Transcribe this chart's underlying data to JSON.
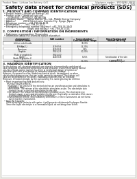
{
  "bg_color": "#e8e8e0",
  "page_bg": "#ffffff",
  "title": "Safety data sheet for chemical products (SDS)",
  "header_left": "Product Name: Lithium Ion Battery Cell",
  "header_right_line1": "Substance number: SPX1085AU-00010",
  "header_right_line2": "Establishment / Revision: Dec.1.2019",
  "section1_title": "1. PRODUCT AND COMPANY IDENTIFICATION",
  "section1_lines": [
    "  • Product name: Lithium Ion Battery Cell",
    "  • Product code: Cylindrical-type cell",
    "       US18650U, US18650U, US18650A",
    "  • Company name:     Sanyo Electric Co., Ltd., Mobile Energy Company",
    "  • Address:           2001 Kamiotsuka, Sumoto-City, Hyogo, Japan",
    "  • Telephone number:  +81-799-26-4111",
    "  • Fax number:        +81-799-26-4121",
    "  • Emergency telephone number (daytime): +81-799-26-3942",
    "                                    (Night and holiday): +81-799-26-3101"
  ],
  "section2_title": "2. COMPOSITION / INFORMATION ON INGREDIENTS",
  "section2_intro": "  • Substance or preparation: Preparation",
  "section2_sub": "  • Information about the chemical nature of product:",
  "table_headers_row1": [
    "Component /",
    "CAS number",
    "Concentration /",
    "Classification and"
  ],
  "table_headers_row2": [
    "Several name",
    "",
    "Concentration range",
    "hazard labeling"
  ],
  "table_rows": [
    [
      "Lithium cobalt oxide\n(LiMnCo₂O₄)",
      "-",
      "30-60%",
      "-"
    ],
    [
      "Iron",
      "7439-89-6",
      "15-25%",
      "-"
    ],
    [
      "Aluminum",
      "7429-90-5",
      "2-5%",
      "-"
    ],
    [
      "Graphite\n(Flake or graphite-L)\n(Artificial graphite-L)",
      "7782-42-5\n7782-44-0",
      "10-25%",
      "-"
    ],
    [
      "Copper",
      "7440-50-8",
      "5-15%",
      "Sensitization of the skin\ngroup R43 2"
    ],
    [
      "Organic electrolyte",
      "-",
      "10-20%",
      "Flammable liquid"
    ]
  ],
  "section3_title": "3. HAZARDS IDENTIFICATION",
  "section3_paras": [
    "For the battery cell, chemical materials are stored in a hermetically sealed metal case, designed to withstand temperatures and pressures encountered during normal use. As a result, during normal use, there is no physical danger of ignition or explosion and there is no danger of hazardous materials leakage.",
    "  However, if exposed to a fire, added mechanical shock, decomposed, or when electric discharging occurs, the gas inside cannot be operated. The battery cell case will be breached or fire arises. Hazardous materials may be released.",
    "  Moreover, if heated strongly by the surrounding fire, some gas may be emitted."
  ],
  "section3_bullet1": "  • Most important hazard and effects:",
  "section3_health": "      Human health effects:",
  "section3_health_items": [
    "        Inhalation: The release of the electrolyte has an anesthesia action and stimulates in respiratory tract.",
    "        Skin contact: The release of the electrolyte stimulates a skin. The electrolyte skin contact causes a sore and stimulation on the skin.",
    "        Eye contact: The release of the electrolyte stimulates eyes. The electrolyte eye contact causes a sore and stimulation on the eye. Especially, a substance that causes a strong inflammation of the eyes is contained.",
    "        Environmental effects: Since a battery cell remains in the environment, do not throw out it into the environment."
  ],
  "section3_bullet2": "  • Specific hazards:",
  "section3_specific": [
    "      If the electrolyte contacts with water, it will generate detrimental hydrogen fluoride.",
    "      Since the liquid electrolyte is a flammable liquid, do not bring close to fire."
  ]
}
